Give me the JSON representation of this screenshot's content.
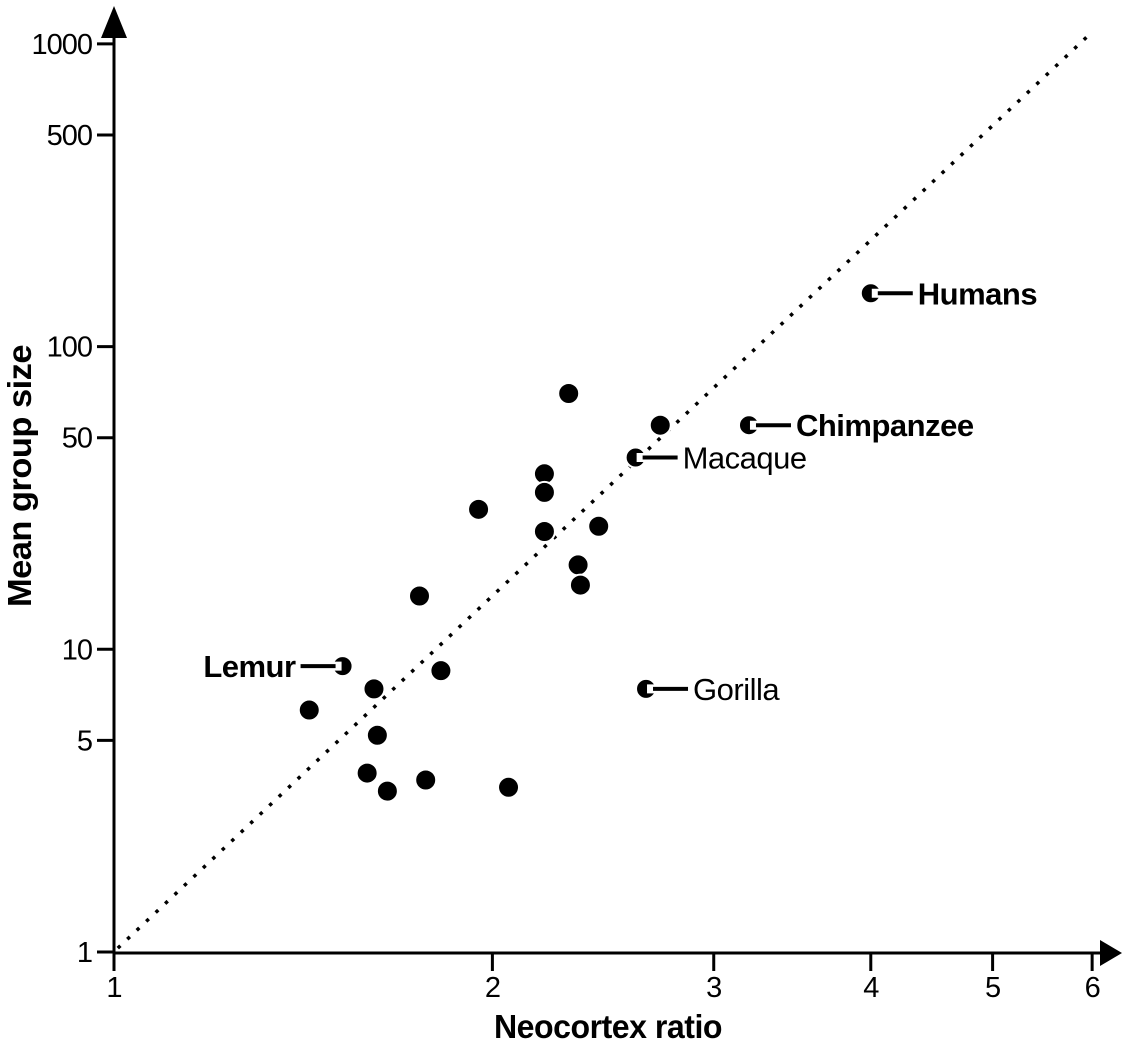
{
  "figure": {
    "background_color": "#ffffff",
    "ink_color": "#000000"
  },
  "chart_data": {
    "type": "scatter",
    "title": "",
    "xlabel": "Neocortex ratio",
    "ylabel": "Mean group size",
    "x_scale": "log",
    "y_scale": "log",
    "x_ticks": [
      1,
      2,
      3,
      4,
      5,
      6
    ],
    "y_ticks": [
      1,
      5,
      10,
      50,
      100,
      500,
      1000
    ],
    "xlim": [
      1,
      6.2
    ],
    "ylim": [
      1,
      1300
    ],
    "grid": false,
    "legend": "none",
    "trend_line": {
      "style": "dotted",
      "x1": 1.007,
      "y1": 1.03,
      "x2": 6.0,
      "y2": 1095
    },
    "points": [
      {
        "x": 1.43,
        "y": 6.3
      },
      {
        "x": 1.61,
        "y": 7.4
      },
      {
        "x": 1.62,
        "y": 5.2
      },
      {
        "x": 1.59,
        "y": 3.9
      },
      {
        "x": 1.65,
        "y": 3.4
      },
      {
        "x": 1.77,
        "y": 3.7
      },
      {
        "x": 2.06,
        "y": 3.5
      },
      {
        "x": 1.82,
        "y": 8.5
      },
      {
        "x": 1.75,
        "y": 15
      },
      {
        "x": 1.95,
        "y": 29
      },
      {
        "x": 2.2,
        "y": 38
      },
      {
        "x": 2.2,
        "y": 33
      },
      {
        "x": 2.2,
        "y": 24.5
      },
      {
        "x": 2.3,
        "y": 70
      },
      {
        "x": 2.34,
        "y": 19
      },
      {
        "x": 2.35,
        "y": 16.3
      },
      {
        "x": 2.43,
        "y": 25.5
      },
      {
        "x": 2.72,
        "y": 55
      },
      {
        "x": 1.52,
        "y": 8.8,
        "label": "Lemur",
        "side": "left",
        "bold": true
      },
      {
        "x": 2.6,
        "y": 43,
        "label": "Macaque",
        "side": "right",
        "bold": false
      },
      {
        "x": 2.65,
        "y": 7.4,
        "label": "Gorilla",
        "side": "right",
        "bold": false
      },
      {
        "x": 3.2,
        "y": 55,
        "label": "Chimpanzee",
        "side": "right",
        "bold": true
      },
      {
        "x": 4.0,
        "y": 150,
        "label": "Humans",
        "side": "right",
        "bold": true
      }
    ]
  }
}
